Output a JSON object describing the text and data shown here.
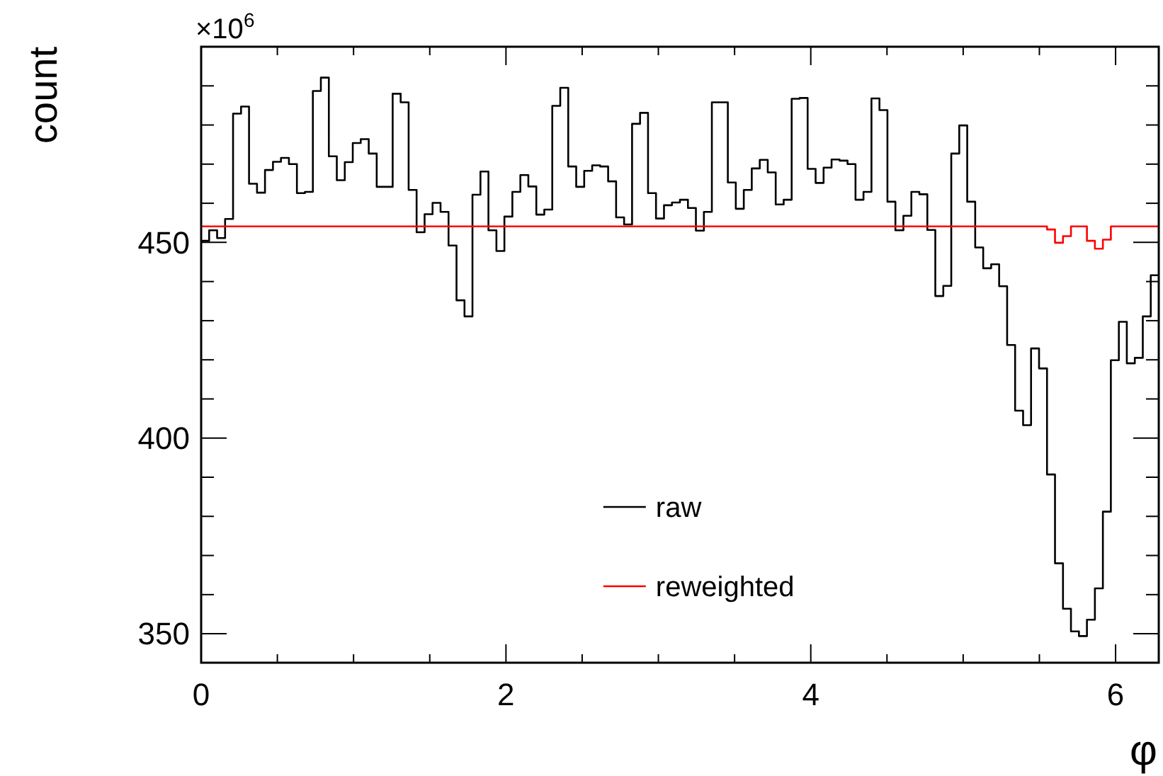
{
  "chart_data": {
    "type": "histogram",
    "ylabel": "count",
    "xlabel": "φ",
    "annotations": [
      "×10$^{6}$"
    ],
    "bins": [
      0,
      0.0524,
      0.1047,
      0.1571,
      0.2094,
      0.2618,
      0.3142,
      0.3665,
      0.4189,
      0.4712,
      0.5236,
      0.576,
      0.6283,
      0.6807,
      0.733,
      0.7854,
      0.8378,
      0.8901,
      0.9425,
      0.9948,
      1.0472,
      1.0996,
      1.1519,
      1.2043,
      1.2566,
      1.309,
      1.3614,
      1.4137,
      1.4661,
      1.5184,
      1.5708,
      1.6232,
      1.6755,
      1.7279,
      1.7802,
      1.8326,
      1.885,
      1.9373,
      1.9897,
      2.042,
      2.0944,
      2.1468,
      2.1991,
      2.2515,
      2.3038,
      2.3562,
      2.4086,
      2.4609,
      2.5133,
      2.5656,
      2.618,
      2.6704,
      2.7227,
      2.7751,
      2.8274,
      2.8798,
      2.9322,
      2.9845,
      3.0369,
      3.0892,
      3.1416,
      3.194,
      3.2463,
      3.2987,
      3.351,
      3.4034,
      3.4558,
      3.5081,
      3.5605,
      3.6128,
      3.6652,
      3.7176,
      3.7699,
      3.8223,
      3.8746,
      3.927,
      3.9794,
      4.0317,
      4.0841,
      4.1364,
      4.1888,
      4.2412,
      4.2935,
      4.3459,
      4.3982,
      4.4506,
      4.503,
      4.5553,
      4.6077,
      4.66,
      4.7124,
      4.7648,
      4.8171,
      4.8695,
      4.9218,
      4.9742,
      5.0265,
      5.0789,
      5.1313,
      5.1836,
      5.236,
      5.2884,
      5.3407,
      5.3931,
      5.4454,
      5.4978,
      5.5501,
      5.6025,
      5.6549,
      5.7072,
      5.7596,
      5.812,
      5.8643,
      5.9167,
      5.969,
      6.0214,
      6.0737,
      6.1261,
      6.1785,
      6.2308,
      6.2832
    ],
    "series": [
      {
        "name": "raw",
        "color": "#000000",
        "values": [
          450.4,
          453.1,
          451.1,
          456.0,
          482.9,
          484.7,
          465.0,
          462.7,
          468.5,
          470.6,
          471.6,
          470.0,
          462.6,
          462.9,
          488.7,
          492.1,
          472.0,
          465.9,
          470.5,
          475.4,
          476.4,
          472.7,
          464.2,
          464.2,
          488.0,
          485.8,
          463.4,
          452.6,
          457.2,
          460.1,
          457.8,
          449.2,
          435.2,
          431.1,
          462.2,
          468.1,
          453.1,
          447.8,
          456.6,
          462.9,
          467.2,
          464.3,
          457.1,
          458.4,
          484.9,
          489.5,
          469.4,
          464.2,
          468.3,
          469.7,
          469.4,
          465.6,
          456.4,
          454.6,
          480.3,
          483.1,
          462.6,
          456.1,
          459.5,
          460.2,
          460.9,
          458.8,
          453.0,
          457.8,
          485.8,
          485.8,
          465.3,
          458.6,
          463.4,
          468.9,
          471.1,
          467.9,
          459.7,
          460.9,
          486.7,
          486.9,
          468.8,
          465.2,
          469.1,
          471.2,
          470.9,
          470.0,
          460.9,
          462.9,
          486.8,
          483.8,
          460.4,
          453.1,
          456.8,
          462.9,
          462.3,
          453.2,
          436.3,
          438.9,
          472.7,
          479.9,
          460.4,
          448.7,
          443.4,
          444.4,
          438.8,
          423.8,
          407.0,
          403.3,
          422.9,
          417.8,
          390.7,
          368.0,
          356.4,
          350.6,
          349.4,
          353.6,
          361.6,
          381.2,
          419.9,
          429.7,
          419.1,
          420.5,
          431.1,
          441.6
        ]
      },
      {
        "name": "reweighted",
        "color": "#ff0000",
        "values": [
          454.1,
          454.1,
          454.1,
          454.1,
          454.1,
          454.1,
          454.1,
          454.1,
          454.1,
          454.1,
          454.1,
          454.1,
          454.1,
          454.1,
          454.1,
          454.1,
          454.1,
          454.1,
          454.1,
          454.1,
          454.1,
          454.1,
          454.1,
          454.1,
          454.1,
          454.1,
          454.1,
          454.1,
          454.1,
          454.1,
          454.1,
          454.1,
          454.1,
          454.1,
          454.1,
          454.1,
          454.1,
          454.1,
          454.1,
          454.1,
          454.1,
          454.1,
          454.1,
          454.1,
          454.1,
          454.1,
          454.1,
          454.1,
          454.1,
          454.1,
          454.1,
          454.1,
          454.1,
          454.1,
          454.1,
          454.1,
          454.1,
          454.1,
          454.1,
          454.1,
          454.1,
          454.1,
          454.1,
          454.1,
          454.1,
          454.1,
          454.1,
          454.1,
          454.1,
          454.1,
          454.1,
          454.1,
          454.1,
          454.1,
          454.1,
          454.1,
          454.1,
          454.1,
          454.1,
          454.1,
          454.1,
          454.1,
          454.1,
          454.1,
          454.1,
          454.1,
          454.1,
          454.1,
          454.1,
          454.1,
          454.1,
          454.1,
          454.1,
          454.1,
          454.1,
          454.1,
          454.1,
          454.1,
          454.1,
          454.1,
          454.1,
          454.1,
          454.1,
          454.1,
          454.1,
          454.1,
          453.3,
          449.9,
          451.6,
          454.1,
          454.1,
          450.4,
          448.4,
          450.7,
          454.1,
          454.1,
          454.1,
          454.1,
          454.1,
          454.1
        ]
      }
    ],
    "xlim": [
      0,
      6.2832
    ],
    "ylim": [
      342.6,
      500
    ],
    "xticks": [
      0,
      {
        "value": 0.5,
        "label": null
      },
      {
        "value": 1,
        "label": null
      },
      {
        "value": 1.5,
        "label": null
      },
      2,
      {
        "value": 2.5,
        "label": null
      },
      {
        "value": 3,
        "label": null
      },
      {
        "value": 3.5,
        "label": null
      },
      4,
      {
        "value": 4.5,
        "label": null
      },
      {
        "value": 5,
        "label": null
      },
      {
        "value": 5.5,
        "label": null
      },
      6
    ],
    "yticks": [
      350,
      {
        "value": 360,
        "label": null
      },
      {
        "value": 370,
        "label": null
      },
      {
        "value": 380,
        "label": null
      },
      {
        "value": 390,
        "label": null
      },
      400,
      {
        "value": 410,
        "label": null
      },
      {
        "value": 420,
        "label": null
      },
      {
        "value": 430,
        "label": null
      },
      {
        "value": 440,
        "label": null
      },
      450,
      {
        "value": 460,
        "label": null
      },
      {
        "value": 470,
        "label": null
      },
      {
        "value": 480,
        "label": null
      },
      {
        "value": 490,
        "label": null
      }
    ],
    "legend": "bottom"
  }
}
